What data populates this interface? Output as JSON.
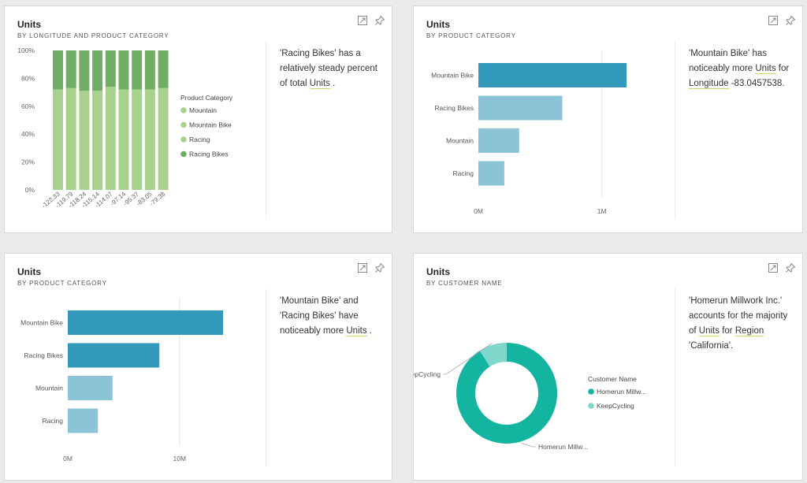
{
  "cards": [
    {
      "title": "Units",
      "subtitle": "BY LONGITUDE AND PRODUCT CATEGORY",
      "insight": {
        "pre": "'Racing Bikes' has a relatively steady percent of total ",
        "link1": "Units",
        "mid": " .",
        "link2": "",
        "post": ""
      }
    },
    {
      "title": "Units",
      "subtitle": "BY PRODUCT CATEGORY",
      "insight": {
        "pre": "'Mountain Bike' has noticeably more ",
        "link1": "Units",
        "mid": " for ",
        "link2": "Longitude",
        "post": " -83.0457538."
      }
    },
    {
      "title": "Units",
      "subtitle": "BY PRODUCT CATEGORY",
      "insight": {
        "pre": "'Mountain Bike' and 'Racing Bikes' have noticeably more ",
        "link1": "Units",
        "mid": " .",
        "link2": "",
        "post": ""
      }
    },
    {
      "title": "Units",
      "subtitle": "BY CUSTOMER NAME",
      "insight": {
        "pre": "'Homerun Millwork Inc.' accounts for the majority of ",
        "link1": "Units",
        "mid": " for ",
        "link2": "Region",
        "post": " 'California'."
      }
    }
  ],
  "icons": [
    "focus-mode-icon",
    "pin-icon"
  ],
  "chart_data": [
    {
      "type": "bar",
      "stacked": "100%",
      "categories": [
        "-122.33",
        "-119.79",
        "-118.24",
        "-115.14",
        "-114.07",
        "-97.14",
        "-95.37",
        "-83.05",
        "-79.38"
      ],
      "series": [
        {
          "name": "Mountain",
          "values": [
            0,
            0,
            0,
            0,
            0,
            0,
            0,
            0,
            0
          ],
          "color": "#a9d18e"
        },
        {
          "name": "Mountain Bike",
          "values": [
            0,
            0,
            0,
            0,
            0,
            0,
            0,
            0,
            0
          ],
          "color": "#a9d18e"
        },
        {
          "name": "Racing",
          "values": [
            72,
            73,
            71,
            71,
            74,
            72,
            72,
            72,
            73
          ],
          "color": "#a9d18e"
        },
        {
          "name": "Racing Bikes",
          "values": [
            28,
            27,
            29,
            29,
            26,
            28,
            28,
            28,
            27
          ],
          "color": "#70ad65"
        }
      ],
      "y_ticks": [
        "100%",
        "80%",
        "60%",
        "40%",
        "20%",
        "0%"
      ],
      "ylim": [
        0,
        100
      ],
      "legend_title": "Product Category",
      "legend_position": "right"
    },
    {
      "type": "bar",
      "orientation": "horizontal",
      "categories": [
        "Mountain Bike",
        "Racing Bikes",
        "Mountain",
        "Racing"
      ],
      "values": [
        1200000,
        680000,
        330000,
        210000
      ],
      "colors": [
        "#3399bb",
        "#8ac4d6",
        "#8ac4d6",
        "#8ac4d6"
      ],
      "x_ticks": [
        {
          "value": 0,
          "label": "0M"
        },
        {
          "value": 1000000,
          "label": "1M"
        }
      ],
      "xlim": [
        0,
        1500000
      ]
    },
    {
      "type": "bar",
      "orientation": "horizontal",
      "categories": [
        "Mountain Bike",
        "Racing Bikes",
        "Mountain",
        "Racing"
      ],
      "values": [
        13900000,
        8200000,
        4000000,
        2700000
      ],
      "colors": [
        "#3399bb",
        "#3399bb",
        "#8ac4d6",
        "#8ac4d6"
      ],
      "x_ticks": [
        {
          "value": 0,
          "label": "0M"
        },
        {
          "value": 10000000,
          "label": "10M"
        }
      ],
      "xlim": [
        0,
        17000000
      ]
    },
    {
      "type": "pie",
      "donut": true,
      "slices": [
        {
          "name": "Homerun Millw...",
          "value": 91,
          "color": "#13b5a0"
        },
        {
          "name": "KeepCycling",
          "value": 9,
          "color": "#7fd6cb"
        }
      ],
      "legend_title": "Customer Name",
      "legend_position": "right"
    }
  ]
}
